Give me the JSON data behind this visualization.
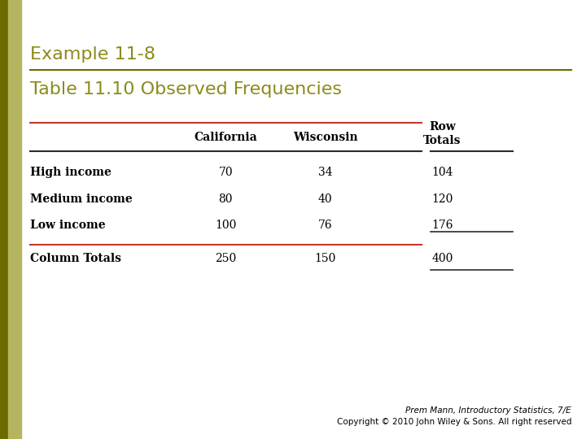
{
  "title_example": "Example 11-8",
  "title_table": "Table 11.10 Observed Frequencies",
  "col_headers_main": [
    "California",
    "Wisconsin"
  ],
  "col_header_right": "Row\nTotals",
  "rows": [
    [
      "High income",
      "70",
      "34",
      "104"
    ],
    [
      "Medium income",
      "80",
      "40",
      "120"
    ],
    [
      "Low income",
      "100",
      "76",
      "176"
    ],
    [
      "Column Totals",
      "250",
      "150",
      "400"
    ]
  ],
  "background_color": "#ffffff",
  "title_example_color": "#8B8B1A",
  "title_table_color": "#8B8B1A",
  "separator_color_red": "#c0392b",
  "line_color_dark": "#2b2b2b",
  "footer_line1": "Prem Mann, Introductory Statistics, 7/E",
  "footer_line2": "Copyright © 2010 John Wiley & Sons. All right reserved",
  "left_bar_dark": "#6B6B00",
  "left_bar_light": "#b5b560"
}
